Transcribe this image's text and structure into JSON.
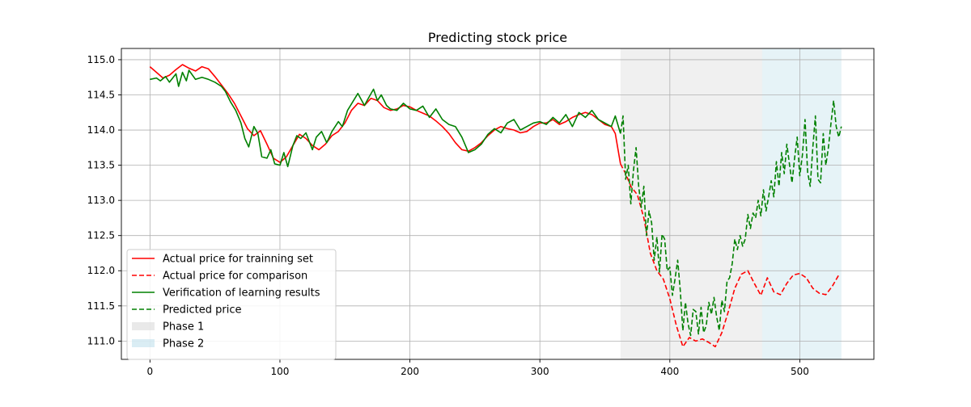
{
  "chart_data": {
    "type": "line",
    "title": "Predicting stock price",
    "xlabel": "",
    "ylabel": "",
    "xlim": [
      -22,
      557
    ],
    "ylim": [
      110.74,
      115.16
    ],
    "xticks": [
      0,
      100,
      200,
      300,
      400,
      500
    ],
    "xtick_labels": [
      "0",
      "100",
      "200",
      "300",
      "400",
      "500"
    ],
    "yticks": [
      111.0,
      111.5,
      112.0,
      112.5,
      113.0,
      113.5,
      114.0,
      114.5,
      115.0
    ],
    "ytick_labels": [
      "111.0",
      "111.5",
      "112.0",
      "112.5",
      "113.0",
      "113.5",
      "114.0",
      "114.5",
      "115.0"
    ],
    "grid": true,
    "legend_position": "lower-left",
    "spans": [
      {
        "name": "Phase 1",
        "x_start": 362,
        "x_end": 471,
        "color": "#d3d3d3",
        "opacity": 0.35
      },
      {
        "name": "Phase 2",
        "x_start": 471,
        "x_end": 532,
        "color": "#add8e6",
        "opacity": 0.3
      }
    ],
    "series": [
      {
        "name": "Actual price for trainning set",
        "color": "#ff0000",
        "style": "solid",
        "x": [
          0,
          5,
          10,
          15,
          20,
          25,
          30,
          35,
          40,
          45,
          50,
          55,
          60,
          65,
          70,
          75,
          80,
          85,
          90,
          95,
          100,
          105,
          110,
          115,
          120,
          125,
          130,
          135,
          140,
          145,
          150,
          155,
          160,
          165,
          170,
          175,
          180,
          185,
          190,
          195,
          200,
          205,
          210,
          215,
          220,
          225,
          230,
          235,
          240,
          245,
          250,
          255,
          260,
          265,
          270,
          275,
          280,
          285,
          290,
          295,
          300,
          305,
          310,
          315,
          320,
          325,
          330,
          335,
          340,
          345,
          350,
          355,
          358,
          362
        ],
        "y": [
          114.9,
          114.82,
          114.74,
          114.78,
          114.86,
          114.93,
          114.88,
          114.84,
          114.9,
          114.87,
          114.76,
          114.64,
          114.52,
          114.38,
          114.2,
          114.02,
          113.92,
          113.99,
          113.8,
          113.6,
          113.54,
          113.62,
          113.78,
          113.94,
          113.88,
          113.78,
          113.72,
          113.8,
          113.92,
          113.98,
          114.1,
          114.28,
          114.38,
          114.35,
          114.45,
          114.42,
          114.32,
          114.28,
          114.3,
          114.35,
          114.33,
          114.28,
          114.24,
          114.2,
          114.13,
          114.05,
          113.95,
          113.82,
          113.72,
          113.7,
          113.75,
          113.82,
          113.92,
          114.0,
          114.05,
          114.02,
          114.0,
          113.96,
          113.98,
          114.05,
          114.1,
          114.1,
          114.15,
          114.08,
          114.12,
          114.18,
          114.22,
          114.25,
          114.22,
          114.15,
          114.08,
          114.05,
          113.95,
          113.52
        ]
      },
      {
        "name": "Actual price for comparison",
        "color": "#ff0000",
        "style": "dashed",
        "x": [
          362,
          366,
          370,
          375,
          380,
          385,
          390,
          395,
          400,
          405,
          410,
          415,
          420,
          425,
          430,
          435,
          440,
          445,
          450,
          455,
          460,
          465,
          470,
          475,
          480,
          485,
          490,
          495,
          500,
          505,
          510,
          515,
          520,
          525,
          530
        ],
        "y": [
          113.52,
          113.38,
          113.2,
          113.08,
          112.75,
          112.25,
          112.0,
          111.88,
          111.6,
          111.22,
          110.92,
          111.05,
          111.0,
          111.03,
          110.98,
          110.92,
          111.12,
          111.42,
          111.75,
          111.95,
          112.0,
          111.82,
          111.65,
          111.9,
          111.7,
          111.66,
          111.82,
          111.94,
          111.96,
          111.9,
          111.75,
          111.68,
          111.66,
          111.78,
          111.94
        ]
      },
      {
        "name": "Verification of learning results",
        "color": "#008000",
        "style": "solid",
        "x": [
          0,
          5,
          8,
          12,
          15,
          20,
          22,
          25,
          28,
          30,
          35,
          40,
          45,
          50,
          55,
          58,
          62,
          66,
          70,
          73,
          76,
          80,
          83,
          86,
          90,
          93,
          96,
          100,
          103,
          106,
          110,
          113,
          116,
          120,
          125,
          128,
          132,
          136,
          140,
          145,
          148,
          152,
          156,
          160,
          165,
          168,
          172,
          175,
          178,
          182,
          185,
          190,
          195,
          200,
          205,
          210,
          215,
          220,
          225,
          230,
          235,
          240,
          245,
          250,
          255,
          260,
          265,
          270,
          275,
          280,
          285,
          290,
          295,
          300,
          305,
          310,
          315,
          320,
          325,
          330,
          335,
          340,
          345,
          350,
          355,
          358,
          362
        ],
        "y": [
          114.72,
          114.74,
          114.7,
          114.76,
          114.68,
          114.8,
          114.62,
          114.82,
          114.7,
          114.85,
          114.72,
          114.75,
          114.72,
          114.68,
          114.62,
          114.55,
          114.4,
          114.28,
          114.1,
          113.88,
          113.76,
          114.05,
          113.95,
          113.62,
          113.6,
          113.72,
          113.52,
          113.5,
          113.68,
          113.48,
          113.78,
          113.92,
          113.88,
          113.96,
          113.72,
          113.9,
          113.98,
          113.82,
          113.98,
          114.12,
          114.05,
          114.28,
          114.4,
          114.52,
          114.35,
          114.45,
          114.58,
          114.42,
          114.5,
          114.35,
          114.3,
          114.28,
          114.38,
          114.3,
          114.28,
          114.34,
          114.18,
          114.3,
          114.15,
          114.08,
          114.05,
          113.9,
          113.68,
          113.72,
          113.8,
          113.94,
          114.02,
          113.96,
          114.1,
          114.15,
          114.0,
          114.05,
          114.1,
          114.12,
          114.08,
          114.18,
          114.1,
          114.22,
          114.05,
          114.25,
          114.18,
          114.28,
          114.15,
          114.1,
          114.05,
          114.2,
          113.95
        ]
      },
      {
        "name": "Predicted price",
        "color": "#008000",
        "style": "dashed",
        "x": [
          362,
          364,
          366,
          368,
          370,
          372,
          374,
          376,
          378,
          380,
          382,
          384,
          386,
          388,
          390,
          392,
          394,
          396,
          398,
          400,
          402,
          404,
          406,
          408,
          410,
          412,
          414,
          416,
          418,
          420,
          422,
          424,
          426,
          428,
          430,
          432,
          434,
          436,
          438,
          440,
          442,
          444,
          446,
          448,
          450,
          452,
          454,
          456,
          458,
          460,
          462,
          464,
          466,
          468,
          470,
          472,
          474,
          476,
          478,
          480,
          482,
          484,
          486,
          488,
          490,
          492,
          494,
          496,
          498,
          500,
          502,
          504,
          506,
          508,
          510,
          512,
          514,
          516,
          518,
          520,
          522,
          524,
          526,
          528,
          530,
          532
        ],
        "y": [
          113.95,
          114.2,
          113.3,
          113.5,
          112.95,
          113.42,
          113.75,
          113.2,
          112.9,
          113.2,
          112.5,
          112.85,
          112.68,
          112.15,
          112.48,
          111.98,
          112.52,
          112.45,
          112.0,
          112.05,
          111.65,
          111.88,
          112.15,
          111.72,
          111.15,
          111.55,
          111.25,
          111.08,
          111.45,
          111.42,
          111.1,
          111.48,
          111.12,
          111.22,
          111.55,
          111.38,
          111.62,
          111.35,
          111.15,
          111.58,
          111.42,
          111.85,
          111.9,
          112.1,
          112.45,
          112.3,
          112.5,
          112.35,
          112.45,
          112.8,
          112.6,
          112.82,
          112.75,
          113.0,
          112.78,
          113.15,
          112.85,
          113.05,
          113.28,
          113.05,
          113.55,
          113.2,
          113.68,
          113.38,
          113.8,
          113.52,
          113.25,
          113.6,
          113.9,
          113.35,
          113.65,
          114.15,
          113.4,
          113.2,
          113.75,
          114.2,
          113.3,
          113.25,
          113.95,
          113.5,
          113.75,
          114.1,
          114.42,
          114.05,
          113.9,
          114.05
        ]
      }
    ]
  }
}
